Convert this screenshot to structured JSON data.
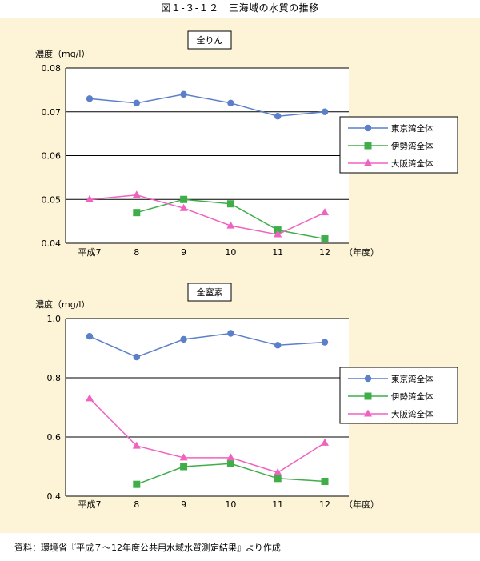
{
  "figure": {
    "title": "図１-３-１２　三海域の水質の推移",
    "footer": "資料：環境省『平成７～12年度公共用水域水質測定結果』より作成"
  },
  "colors": {
    "tokyo": "#5b7fc9",
    "ise": "#3fae49",
    "osaka": "#f062c0"
  },
  "chart_data": [
    {
      "type": "line",
      "title": "全りん",
      "ylabel": "濃度（mg/l）",
      "xlabel": "（年度）",
      "categories": [
        "平成7",
        "8",
        "9",
        "10",
        "11",
        "12"
      ],
      "ylim": [
        0.04,
        0.08
      ],
      "yticks": [
        "0.04",
        "0.05",
        "0.06",
        "0.07",
        "0.08"
      ],
      "legend_position": "right",
      "series": [
        {
          "name": "東京湾全体",
          "marker": "circle",
          "values": [
            0.073,
            0.072,
            0.074,
            0.072,
            0.069,
            0.07
          ]
        },
        {
          "name": "伊勢湾全体",
          "marker": "square",
          "values": [
            null,
            0.047,
            0.05,
            0.049,
            0.043,
            0.041
          ]
        },
        {
          "name": "大阪湾全体",
          "marker": "triangle",
          "values": [
            0.05,
            0.051,
            0.048,
            0.044,
            0.042,
            0.047
          ]
        }
      ]
    },
    {
      "type": "line",
      "title": "全窒素",
      "ylabel": "濃度（mg/l）",
      "xlabel": "（年度）",
      "categories": [
        "平成7",
        "8",
        "9",
        "10",
        "11",
        "12"
      ],
      "ylim": [
        0.4,
        1.0
      ],
      "yticks": [
        "0.4",
        "0.6",
        "0.8",
        "1.0"
      ],
      "legend_position": "right",
      "series": [
        {
          "name": "東京湾全体",
          "marker": "circle",
          "values": [
            0.94,
            0.87,
            0.93,
            0.95,
            0.91,
            0.92
          ]
        },
        {
          "name": "伊勢湾全体",
          "marker": "square",
          "values": [
            null,
            0.44,
            0.5,
            0.51,
            0.46,
            0.45
          ]
        },
        {
          "name": "大阪湾全体",
          "marker": "triangle",
          "values": [
            0.73,
            0.57,
            0.53,
            0.53,
            0.48,
            0.58
          ]
        }
      ]
    }
  ]
}
